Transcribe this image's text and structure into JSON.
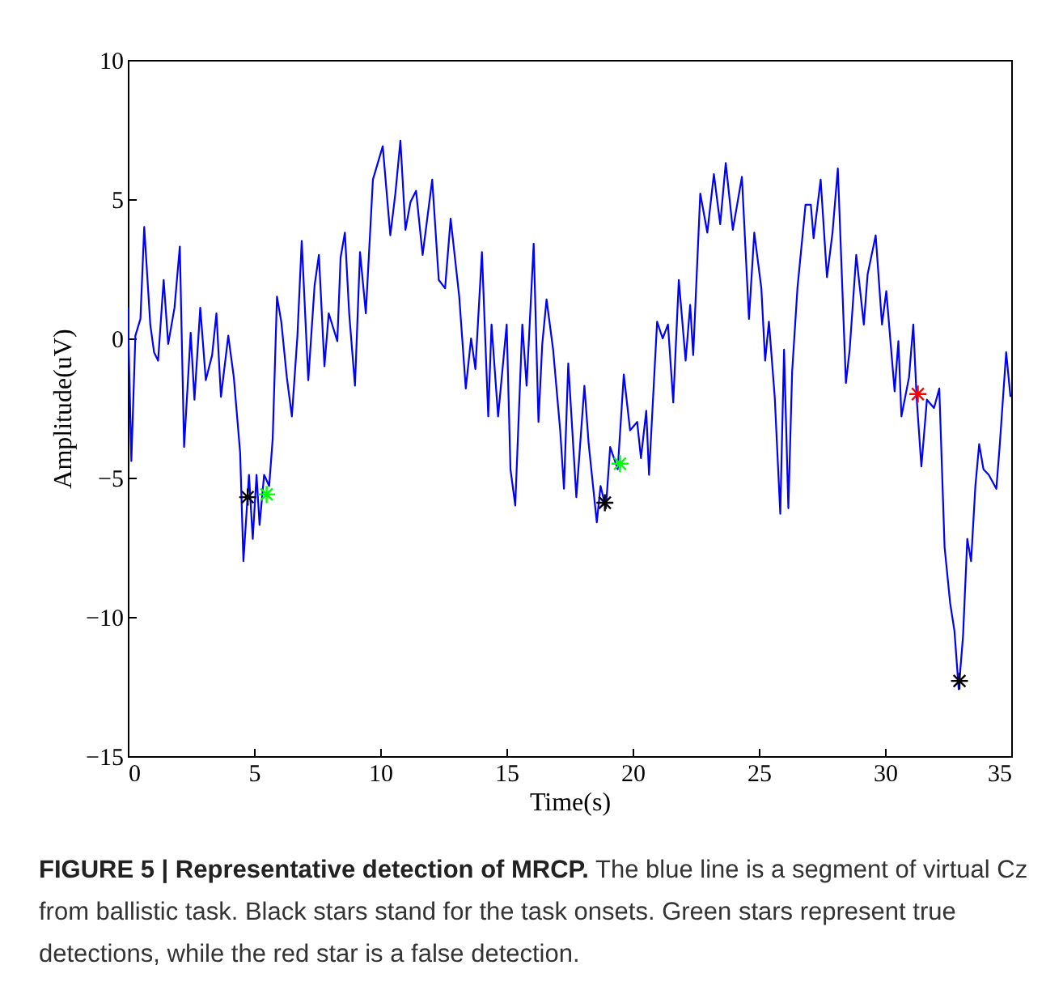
{
  "chart_data": {
    "type": "line",
    "title": "FIGURE 5 | Representative detection of MRCP.",
    "xlabel": "Time(s)",
    "ylabel": "Amplitude(uV)",
    "xlim": [
      0,
      35
    ],
    "ylim": [
      -15,
      10
    ],
    "xticks": [
      0,
      5,
      10,
      15,
      20,
      25,
      30,
      35
    ],
    "yticks": [
      -15,
      -10,
      -5,
      0,
      5,
      10
    ],
    "annotations": [
      "The blue line is a segment of virtual Cz from ballistic task. Black stars stand for the task onsets. Green stars represent true detections, while the red star is a false detection."
    ],
    "series": [
      {
        "type": "line",
        "color": "#0000ff",
        "x": [
          0,
          0.14,
          0.3,
          0.5,
          0.65,
          0.89,
          1.04,
          1.2,
          1.42,
          1.6,
          1.85,
          2.06,
          2.23,
          2.49,
          2.64,
          2.87,
          3.09,
          3.34,
          3.51,
          3.69,
          3.98,
          4.2,
          4.45,
          4.58,
          4.8,
          4.95,
          5.1,
          5.22,
          5.4,
          5.6,
          5.74,
          5.91,
          6.08,
          6.3,
          6.5,
          6.72,
          6.89,
          7.15,
          7.4,
          7.57,
          7.79,
          7.96,
          8.13,
          8.3,
          8.43,
          8.6,
          8.77,
          9.0,
          9.2,
          9.43,
          9.71,
          10.1,
          10.4,
          10.6,
          10.8,
          11.0,
          11.2,
          11.42,
          11.68,
          12.06,
          12.32,
          12.57,
          12.79,
          13.13,
          13.39,
          13.6,
          13.77,
          14.03,
          14.28,
          14.41,
          14.67,
          15.01,
          15.16,
          15.35,
          15.63,
          15.8,
          16.08,
          16.27,
          16.42,
          16.59,
          16.85,
          17.13,
          17.28,
          17.45,
          17.77,
          18.09,
          18.26,
          18.58,
          18.73,
          18.94,
          19.11,
          19.41,
          19.65,
          19.9,
          20.18,
          20.33,
          20.54,
          20.65,
          20.97,
          21.19,
          21.4,
          21.61,
          21.83,
          22.1,
          22.28,
          22.4,
          22.68,
          22.96,
          23.22,
          23.47,
          23.69,
          23.97,
          24.33,
          24.61,
          24.82,
          25.1,
          25.25,
          25.4,
          25.63,
          25.85,
          26.0,
          26.17,
          26.32,
          26.53,
          26.85,
          27.06,
          27.17,
          27.45,
          27.7,
          27.92,
          28.13,
          28.45,
          28.6,
          28.86,
          29.16,
          29.31,
          29.63,
          29.88,
          30.05,
          30.38,
          30.53,
          30.65,
          30.95,
          31.12,
          31.25,
          31.44,
          31.66,
          31.94,
          32.15,
          32.36,
          32.58,
          32.75,
          32.92,
          33.09,
          33.26,
          33.41,
          33.58,
          33.73,
          33.9,
          34.11,
          34.41,
          34.54,
          34.8,
          34.97
        ],
        "values": [
          1.1,
          -4.4,
          0.1,
          0.7,
          4.0,
          0.5,
          -0.5,
          -0.8,
          2.1,
          -0.2,
          1.1,
          3.3,
          -3.9,
          0.2,
          -2.2,
          1.1,
          -1.5,
          -0.6,
          0.9,
          -2.1,
          0.1,
          -1.4,
          -4.1,
          -8.0,
          -4.9,
          -7.2,
          -4.9,
          -6.7,
          -4.9,
          -5.3,
          -3.6,
          1.5,
          0.6,
          -1.4,
          -2.8,
          0.1,
          3.5,
          -1.5,
          1.9,
          3.0,
          -1.0,
          0.9,
          0.4,
          -0.1,
          2.9,
          3.8,
          0.9,
          -1.7,
          3.1,
          0.9,
          5.7,
          6.9,
          3.7,
          5.2,
          7.1,
          3.9,
          4.9,
          5.3,
          3.0,
          5.7,
          2.1,
          1.8,
          4.3,
          1.5,
          -1.8,
          0.0,
          -1.1,
          3.1,
          -2.8,
          0.5,
          -2.8,
          0.5,
          -4.7,
          -6.0,
          0.5,
          -1.7,
          3.4,
          -3.0,
          -0.2,
          1.4,
          -0.4,
          -3.3,
          -5.4,
          -0.9,
          -5.7,
          -1.7,
          -3.8,
          -6.6,
          -5.3,
          -6.1,
          -3.9,
          -4.7,
          -1.3,
          -3.3,
          -3.0,
          -4.3,
          -2.6,
          -4.9,
          0.6,
          0.0,
          0.5,
          -2.3,
          2.1,
          -0.8,
          1.2,
          -0.6,
          5.2,
          3.8,
          5.9,
          4.1,
          6.3,
          3.9,
          5.8,
          0.7,
          3.8,
          1.8,
          -0.8,
          0.6,
          -2.1,
          -6.3,
          -0.4,
          -6.1,
          -1.2,
          1.8,
          4.8,
          4.8,
          3.6,
          5.7,
          2.2,
          3.8,
          6.1,
          -1.6,
          -0.4,
          3.0,
          0.5,
          2.3,
          3.7,
          0.5,
          1.7,
          -1.9,
          -0.1,
          -2.8,
          -1.4,
          0.5,
          -2.1,
          -4.6,
          -2.2,
          -2.5,
          -1.8,
          -7.5,
          -9.5,
          -10.5,
          -12.6,
          -10.7,
          -7.2,
          -8.0,
          -5.3,
          -3.8,
          -4.7,
          -4.9,
          -5.4,
          -3.9,
          -0.5,
          -2.1
        ]
      },
      {
        "type": "scatter",
        "color": "#000000",
        "marker": "cross",
        "x": [
          4.75,
          18.9,
          32.95
        ],
        "values": [
          -5.7,
          -5.9,
          -12.3
        ]
      },
      {
        "type": "scatter",
        "color": "#00ff00",
        "marker": "cross",
        "x": [
          5.5,
          19.5
        ],
        "values": [
          -5.6,
          -4.5
        ]
      },
      {
        "type": "scatter",
        "color": "#ff0000",
        "marker": "cross",
        "x": [
          31.3
        ],
        "values": [
          -2.0
        ]
      }
    ]
  }
}
